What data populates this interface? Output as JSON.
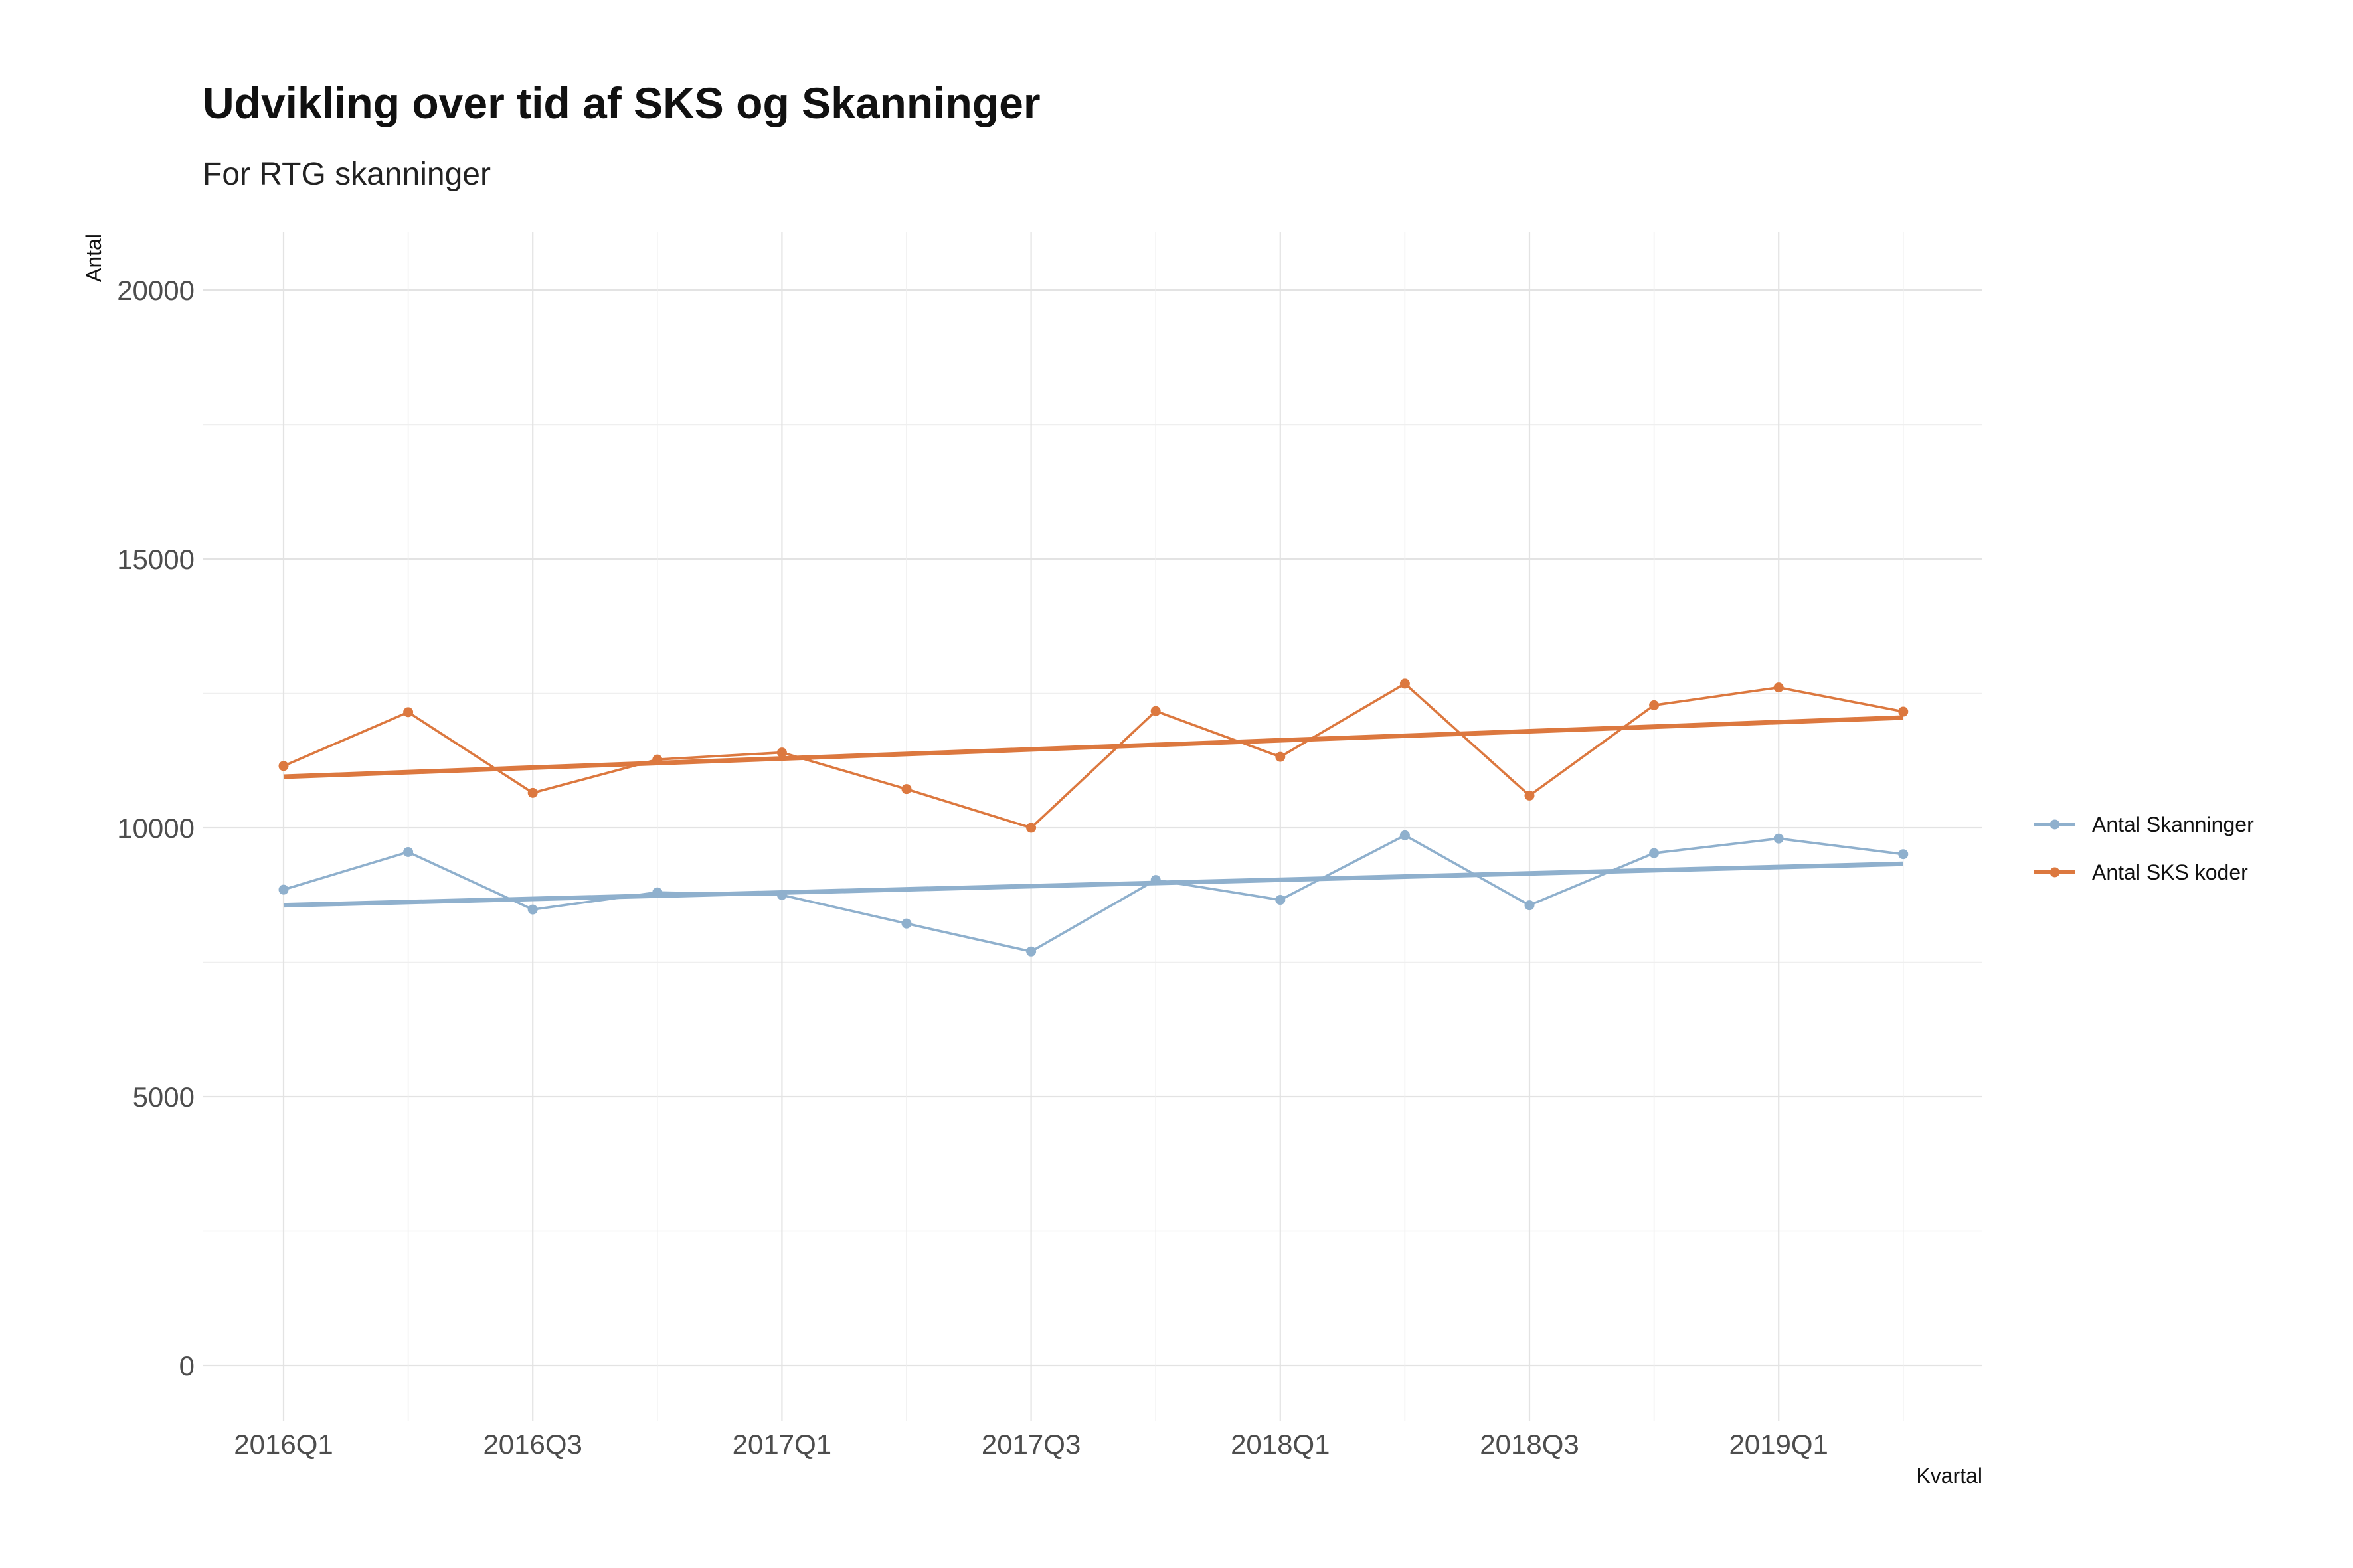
{
  "chart_data": {
    "type": "line",
    "title": "Udvikling over tid af SKS og Skanninger",
    "subtitle": "For RTG skanninger",
    "xlabel": "Kvartal",
    "ylabel": "Antal",
    "categories": [
      "2016Q1",
      "2016Q2",
      "2016Q3",
      "2016Q4",
      "2017Q1",
      "2017Q2",
      "2017Q3",
      "2017Q4",
      "2018Q1",
      "2018Q2",
      "2018Q3",
      "2018Q4",
      "2019Q1",
      "2019Q2"
    ],
    "x_tick_labels": [
      "2016Q1",
      "2016Q3",
      "2017Q1",
      "2017Q3",
      "2018Q1",
      "2018Q3",
      "2019Q1"
    ],
    "y_ticks": [
      0,
      5000,
      10000,
      15000,
      20000
    ],
    "ylim": [
      -1000,
      21000
    ],
    "grid": true,
    "legend_position": "right",
    "series": [
      {
        "name": "Antal Skanninger",
        "color": "#8fb0cd",
        "values": [
          8850,
          9550,
          8480,
          8800,
          8750,
          8220,
          7700,
          9030,
          8660,
          9860,
          8560,
          9530,
          9800,
          9510
        ],
        "trend": [
          8560,
          9330
        ]
      },
      {
        "name": "Antal SKS koder",
        "color": "#dc783f",
        "values": [
          11150,
          12150,
          10650,
          11270,
          11400,
          10720,
          10000,
          12170,
          11320,
          12680,
          10600,
          12280,
          12610,
          12160
        ],
        "trend": [
          10950,
          12050
        ]
      }
    ]
  }
}
